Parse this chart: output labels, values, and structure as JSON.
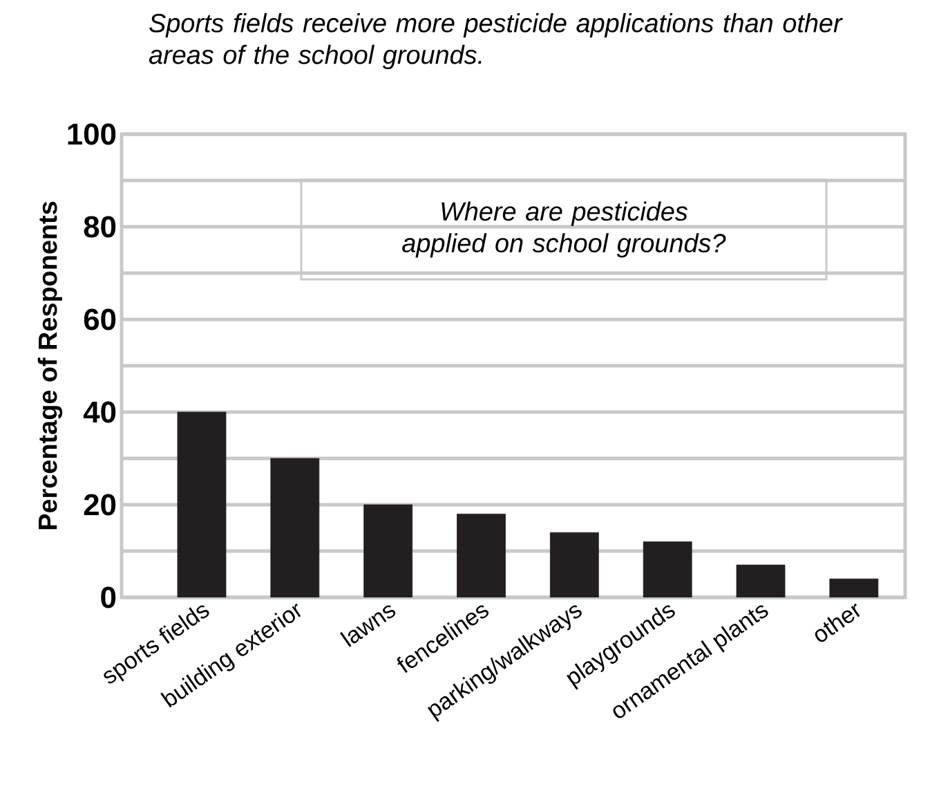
{
  "chart_data": {
    "type": "bar",
    "title": "Sports fields receive more pesticide applications than other areas of the school grounds.",
    "annotations": [
      "Where are pesticides applied on school grounds?"
    ],
    "ylabel": "Percentage of Responents",
    "categories": [
      "sports fields",
      "building exterior",
      "lawns",
      "fencelines",
      "parking/walkways",
      "playgrounds",
      "ornamental plants",
      "other"
    ],
    "values": [
      40,
      30,
      20,
      18,
      14,
      12,
      7,
      4
    ],
    "color": "#231f20",
    "ylim": [
      0,
      100
    ],
    "yticks": [
      0,
      {
        "value": 10,
        "label": null
      },
      20,
      {
        "value": 30,
        "label": null
      },
      40,
      {
        "value": 50,
        "label": null
      },
      60,
      {
        "value": 70,
        "label": null
      },
      80,
      {
        "value": 90,
        "label": null
      },
      100
    ],
    "grid": "y"
  }
}
